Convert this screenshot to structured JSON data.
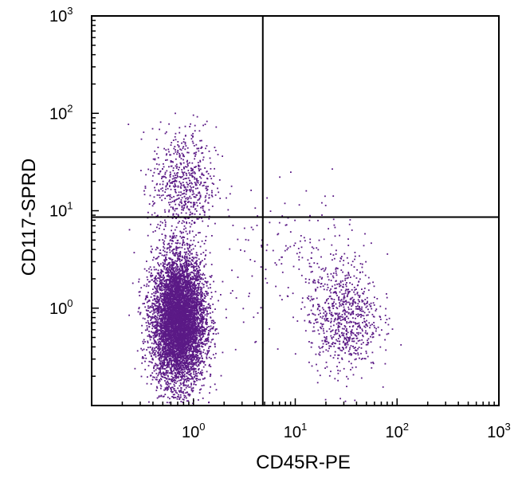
{
  "chart_data": {
    "type": "scatter",
    "title": "",
    "xlabel": "CD45R-PE",
    "ylabel": "CD117-SPRD",
    "x_scale": "log",
    "y_scale": "log",
    "xlim": [
      0.1,
      1000
    ],
    "ylim": [
      0.1,
      1000
    ],
    "grid": false,
    "x_ticks": [
      {
        "value": 1,
        "base": "10",
        "exp": "0"
      },
      {
        "value": 10,
        "base": "10",
        "exp": "1"
      },
      {
        "value": 100,
        "base": "10",
        "exp": "2"
      },
      {
        "value": 1000,
        "base": "10",
        "exp": "3"
      }
    ],
    "y_ticks": [
      {
        "value": 1,
        "base": "10",
        "exp": "0"
      },
      {
        "value": 10,
        "base": "10",
        "exp": "1"
      },
      {
        "value": 100,
        "base": "10",
        "exp": "2"
      },
      {
        "value": 1000,
        "base": "10",
        "exp": "3"
      }
    ],
    "quadrant_gates": {
      "x": 4.8,
      "y": 8.6
    },
    "point_color": "#5b1a86",
    "populations": [
      {
        "center_x": 0.72,
        "center_y": 0.75,
        "spread_x_log10": 0.13,
        "spread_y_log10": 0.33,
        "count": 6500
      },
      {
        "center_x": 0.8,
        "center_y": 18,
        "spread_x_log10": 0.16,
        "spread_y_log10": 0.3,
        "count": 650
      },
      {
        "center_x": 30,
        "center_y": 0.8,
        "spread_x_log10": 0.17,
        "spread_y_log10": 0.28,
        "count": 750
      },
      {
        "center_x": 12,
        "center_y": 3,
        "spread_x_log10": 0.35,
        "spread_y_log10": 0.35,
        "count": 180
      }
    ]
  }
}
